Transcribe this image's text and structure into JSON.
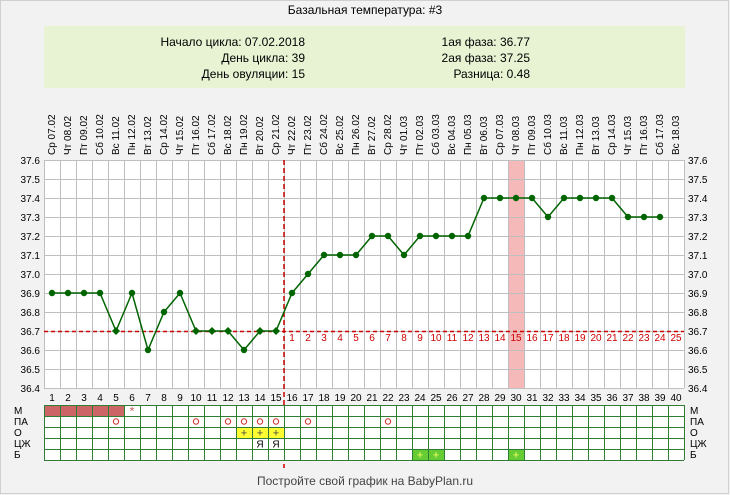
{
  "title": "Базальная температура: #3",
  "info": {
    "left": [
      "Начало цикла: 07.02.2018",
      "День цикла: 39",
      "День овуляции: 15"
    ],
    "right": [
      "1ая фаза: 36.77",
      "2ая фаза: 37.25",
      "Разница: 0.48"
    ]
  },
  "footer": "Постройте свой график на BabyPlan.ru",
  "colors": {
    "line": "#006400",
    "marker": "#006400",
    "coverline": "#cc0000",
    "highlight": "#f6b9b9",
    "period": "#cc6666",
    "yellow": "#ffff33",
    "green_mark": "#66cc33",
    "grid": "#bfbfbf",
    "info_bg": "#e8f3d4"
  },
  "chart_data": {
    "type": "line",
    "dates": [
      "Ср 07.02",
      "Чт 08.02",
      "Пт 09.02",
      "Сб 10.02",
      "Вс 11.02",
      "Пн 12.02",
      "Вт 13.02",
      "Ср 14.02",
      "Чт 15.02",
      "Пт 16.02",
      "Сб 17.02",
      "Вс 18.02",
      "Пн 19.02",
      "Вт 20.02",
      "Ср 21.02",
      "Чт 22.02",
      "Пт 23.02",
      "Сб 24.02",
      "Вс 25.02",
      "Пн 26.02",
      "Вт 27.02",
      "Ср 28.02",
      "Чт 01.03",
      "Пт 02.03",
      "Сб 03.03",
      "Вс 04.03",
      "Пн 05.03",
      "Вт 06.03",
      "Ср 07.03",
      "Чт 08.03",
      "Пт 09.03",
      "Сб 10.03",
      "Вс 11.03",
      "Пн 12.03",
      "Вт 13.03",
      "Ср 14.03",
      "Чт 15.03",
      "Пт 16.03",
      "Сб 17.03",
      "Вс 18.03"
    ],
    "days": [
      1,
      2,
      3,
      4,
      5,
      6,
      7,
      8,
      9,
      10,
      11,
      12,
      13,
      14,
      15,
      16,
      17,
      18,
      19,
      20,
      21,
      22,
      23,
      24,
      25,
      26,
      27,
      28,
      29,
      30,
      31,
      32,
      33,
      34,
      35,
      36,
      37,
      38,
      39,
      40
    ],
    "temps": [
      36.9,
      36.9,
      36.9,
      36.9,
      36.7,
      36.9,
      36.6,
      36.8,
      36.9,
      36.7,
      36.7,
      36.7,
      36.6,
      36.7,
      36.7,
      36.9,
      37.0,
      37.1,
      37.1,
      37.1,
      37.2,
      37.2,
      37.1,
      37.2,
      37.2,
      37.2,
      37.2,
      37.4,
      37.4,
      37.4,
      37.4,
      37.3,
      37.4,
      37.4,
      37.4,
      37.4,
      37.3,
      37.3,
      37.3
    ],
    "marker_styles": [
      "dot",
      "dot",
      "dot",
      "dot",
      "diamond",
      "dot",
      "dot",
      "dot",
      "dot",
      "diamond",
      "diamond",
      "diamond",
      "dot",
      "diamond",
      "diamond",
      "dot",
      "dot",
      "dot",
      "dot",
      "dot",
      "dot",
      "dot",
      "dot",
      "dot",
      "dot",
      "dot",
      "dot",
      "dot",
      "dot",
      "dot",
      "dot",
      "dot",
      "dot",
      "dot",
      "dot",
      "dot",
      "dot",
      "dot",
      "dot"
    ],
    "yticks": [
      "37.6",
      "37.5",
      "37.4",
      "37.3",
      "37.2",
      "37.1",
      "37.0",
      "36.9",
      "36.8",
      "36.7",
      "36.6",
      "36.5",
      "36.4"
    ],
    "ylim": [
      36.4,
      37.6
    ],
    "coverline": 36.7,
    "ovulation_day": 15,
    "highlight_day": 30,
    "luteal_labels": [
      "1",
      "2",
      "3",
      "4",
      "5",
      "6",
      "7",
      "8",
      "9",
      "10",
      "11",
      "12",
      "13",
      "14",
      "15",
      "16",
      "17",
      "18",
      "19",
      "20",
      "21",
      "22",
      "23",
      "24",
      "25"
    ],
    "luteal_start_day": 16,
    "moon_day": 20,
    "rows": [
      {
        "label": "М",
        "period_days": [
          1,
          2,
          3,
          4,
          5
        ],
        "star_day": 6
      },
      {
        "label": "ПА",
        "circle_days": [
          5,
          10,
          12,
          13,
          14,
          15,
          17,
          22
        ]
      },
      {
        "label": "О",
        "plus_days": [
          13,
          14,
          15
        ]
      },
      {
        "label": "ЦЖ",
        "text_marks": [
          {
            "day": 14,
            "text": "Я"
          },
          {
            "day": 15,
            "text": "Я"
          }
        ]
      },
      {
        "label": "Б",
        "green_plus_days": [
          24,
          25,
          30
        ]
      }
    ]
  }
}
